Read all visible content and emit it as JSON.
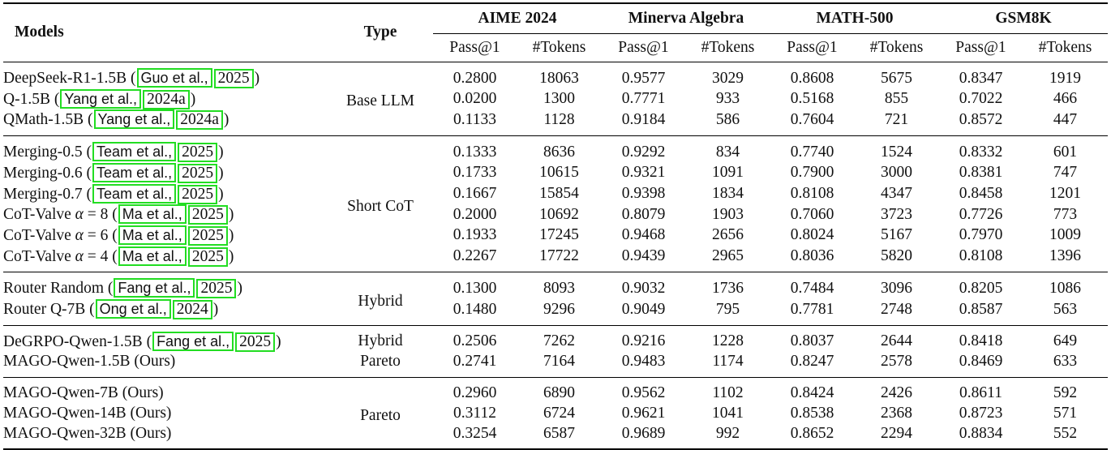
{
  "headers": {
    "models": "Models",
    "type": "Type",
    "groups": [
      "AIME 2024",
      "Minerva Algebra",
      "MATH-500",
      "GSM8K"
    ],
    "sub": [
      "Pass@1",
      "#Tokens"
    ]
  },
  "sections": [
    {
      "type": "Base LLM",
      "rows": [
        {
          "pre": "DeepSeek-R1-1.5B (",
          "cite1": "Guo et al.,",
          "cite2": "2025",
          "post": ")",
          "vals": [
            "0.2800",
            "18063",
            "0.9577",
            "3029",
            "0.8608",
            "5675",
            "0.8347",
            "1919"
          ]
        },
        {
          "pre": "Q-1.5B (",
          "cite1": "Yang et al.,",
          "cite2": "2024a",
          "post": ")",
          "vals": [
            "0.0200",
            "1300",
            "0.7771",
            "933",
            "0.5168",
            "855",
            "0.7022",
            "466"
          ]
        },
        {
          "pre": "QMath-1.5B (",
          "cite1": "Yang et al.,",
          "cite2": "2024a",
          "post": ")",
          "vals": [
            "0.1133",
            "1128",
            "0.9184",
            "586",
            "0.7604",
            "721",
            "0.8572",
            "447"
          ]
        }
      ]
    },
    {
      "type": "Short CoT",
      "rows": [
        {
          "pre": "Merging-0.5 (",
          "cite1": "Team et al.,",
          "cite2": "2025",
          "post": ")",
          "vals": [
            "0.1333",
            "8636",
            "0.9292",
            "834",
            "0.7740",
            "1524",
            "0.8332",
            "601"
          ]
        },
        {
          "pre": "Merging-0.6 (",
          "cite1": "Team et al.,",
          "cite2": "2025",
          "post": ")",
          "vals": [
            "0.1733",
            "10615",
            "0.9321",
            "1091",
            "0.7900",
            "3000",
            "0.8381",
            "747"
          ]
        },
        {
          "pre": "Merging-0.7 (",
          "cite1": "Team et al.,",
          "cite2": "2025",
          "post": ")",
          "vals": [
            "0.1667",
            "15854",
            "0.9398",
            "1834",
            "0.8108",
            "4347",
            "0.8458",
            "1201"
          ]
        },
        {
          "pre": "CoT-Valve α = 8 (",
          "cite1": "Ma et al.,",
          "cite2": "2025",
          "post": ")",
          "vals": [
            "0.2000",
            "10692",
            "0.8079",
            "1903",
            "0.7060",
            "3723",
            "0.7726",
            "773"
          ]
        },
        {
          "pre": "CoT-Valve α = 6 (",
          "cite1": "Ma et al.,",
          "cite2": "2025",
          "post": ")",
          "vals": [
            "0.1933",
            "17245",
            "0.9468",
            "2656",
            "0.8024",
            "5167",
            "0.7970",
            "1009"
          ]
        },
        {
          "pre": "CoT-Valve α = 4 (",
          "cite1": "Ma et al.,",
          "cite2": "2025",
          "post": ")",
          "vals": [
            "0.2267",
            "17722",
            "0.9439",
            "2965",
            "0.8036",
            "5820",
            "0.8108",
            "1396"
          ]
        }
      ]
    },
    {
      "type": "Hybrid",
      "rows": [
        {
          "pre": "Router Random (",
          "cite1": "Fang et al.,",
          "cite2": "2025",
          "post": ")",
          "vals": [
            "0.1300",
            "8093",
            "0.9032",
            "1736",
            "0.7484",
            "3096",
            "0.8205",
            "1086"
          ]
        },
        {
          "pre": "Router Q-7B (",
          "cite1": "Ong et al.,",
          "cite2": "2024",
          "post": ")",
          "vals": [
            "0.1480",
            "9296",
            "0.9049",
            "795",
            "0.7781",
            "2748",
            "0.8587",
            "563"
          ]
        }
      ]
    },
    {
      "rows": [
        {
          "pre": "DeGRPO-Qwen-1.5B (",
          "cite1": "Fang et al.,",
          "cite2": "2025",
          "post": ")",
          "type": "Hybrid",
          "vals": [
            "0.2506",
            "7262",
            "0.9216",
            "1228",
            "0.8037",
            "2644",
            "0.8418",
            "649"
          ]
        },
        {
          "pre": "MAGO-Qwen-1.5B (Ours)",
          "type": "Pareto",
          "vals": [
            "0.2741",
            "7164",
            "0.9483",
            "1174",
            "0.8247",
            "2578",
            "0.8469",
            "633"
          ]
        }
      ]
    },
    {
      "type": "Pareto",
      "rows": [
        {
          "pre": "MAGO-Qwen-7B (Ours)",
          "vals": [
            "0.2960",
            "6890",
            "0.9562",
            "1102",
            "0.8424",
            "2426",
            "0.8611",
            "592"
          ]
        },
        {
          "pre": "MAGO-Qwen-14B (Ours)",
          "vals": [
            "0.3112",
            "6724",
            "0.9621",
            "1041",
            "0.8538",
            "2368",
            "0.8723",
            "571"
          ]
        },
        {
          "pre": "MAGO-Qwen-32B (Ours)",
          "vals": [
            "0.3254",
            "6587",
            "0.9689",
            "992",
            "0.8652",
            "2294",
            "0.8834",
            "552"
          ]
        }
      ]
    }
  ]
}
